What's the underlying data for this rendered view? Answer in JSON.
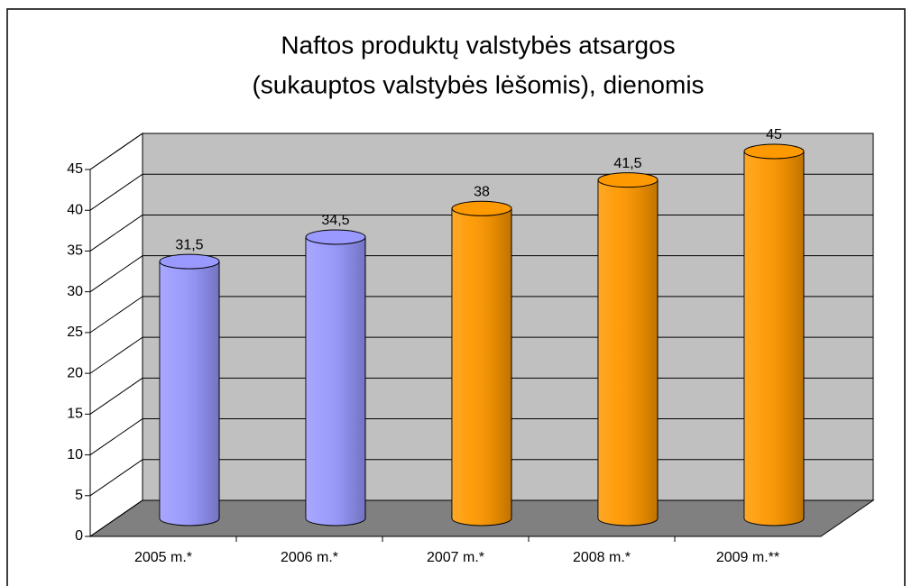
{
  "chart_data": {
    "type": "bar3d",
    "title": [
      "Naftos produktų valstybės atsargos",
      "(sukauptos valstybės lėšomis), dienomis"
    ],
    "categories": [
      "2005 m.*",
      "2006 m.*",
      "2007 m.*",
      "2008 m.*",
      "2009 m.**"
    ],
    "values": [
      31.5,
      34.5,
      38,
      41.5,
      45
    ],
    "value_labels": [
      "31,5",
      "34,5",
      "38",
      "41,5",
      "45"
    ],
    "colors": [
      "#9999ff",
      "#9999ff",
      "#ff9900",
      "#ff9900",
      "#ff9900"
    ],
    "ylim": [
      0,
      45
    ],
    "yticks": [
      0,
      5,
      10,
      15,
      20,
      25,
      30,
      35,
      40,
      45
    ],
    "grid": true
  }
}
